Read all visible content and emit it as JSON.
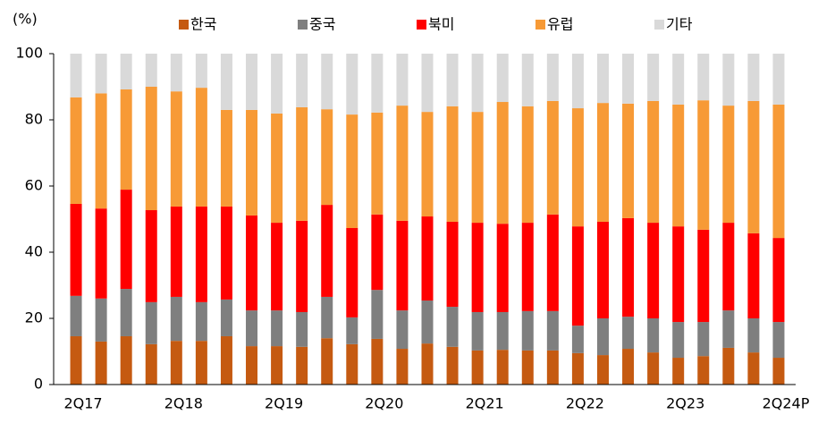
{
  "chart_data": {
    "type": "stacked_bar",
    "y_label": "(%)",
    "categories": [
      "2Q17",
      null,
      null,
      null,
      "2Q18",
      null,
      null,
      null,
      "2Q19",
      null,
      null,
      null,
      "2Q20",
      null,
      null,
      null,
      "2Q21",
      null,
      null,
      null,
      "2Q22",
      null,
      null,
      null,
      "2Q23",
      null,
      null,
      null,
      "2Q24P"
    ],
    "series": [
      {
        "name": "한국",
        "color": "#c55a11",
        "values": [
          14.6,
          13.0,
          14.6,
          12.2,
          13.2,
          13.2,
          14.6,
          11.6,
          11.6,
          11.4,
          14.0,
          12.2,
          13.8,
          10.8,
          12.4,
          11.4,
          10.3,
          10.5,
          10.3,
          10.3,
          9.5,
          8.9,
          10.8,
          9.7,
          8.1,
          8.6,
          11.1,
          9.7,
          8.1
        ]
      },
      {
        "name": "중국",
        "color": "#7f7f7f",
        "values": [
          12.2,
          13.0,
          14.3,
          12.7,
          13.3,
          11.7,
          11.1,
          10.8,
          10.8,
          10.5,
          12.5,
          8.1,
          14.8,
          11.6,
          13.0,
          12.1,
          11.6,
          11.4,
          11.9,
          11.9,
          8.3,
          11.1,
          9.7,
          10.3,
          10.8,
          10.3,
          11.3,
          10.3,
          10.8
        ]
      },
      {
        "name": "북미",
        "color": "#ff0000",
        "values": [
          27.8,
          27.2,
          30.0,
          27.8,
          27.3,
          28.9,
          28.1,
          28.7,
          26.5,
          27.6,
          27.8,
          27.0,
          22.8,
          27.1,
          25.4,
          25.7,
          27.0,
          26.7,
          26.7,
          29.2,
          30.0,
          29.2,
          29.8,
          28.9,
          28.9,
          27.9,
          26.5,
          25.7,
          25.4
        ]
      },
      {
        "name": "유럽",
        "color": "#f79a36",
        "values": [
          32.2,
          34.8,
          30.3,
          37.3,
          34.8,
          35.9,
          29.2,
          31.9,
          33.0,
          34.3,
          28.9,
          34.3,
          30.8,
          34.8,
          31.6,
          34.9,
          33.5,
          36.8,
          35.2,
          34.3,
          35.7,
          35.9,
          34.6,
          36.8,
          36.8,
          39.1,
          35.4,
          40.0,
          40.3
        ]
      },
      {
        "name": "기타",
        "color": "#d9d9d9",
        "values": [
          13.2,
          12.0,
          10.8,
          10.0,
          11.4,
          10.3,
          17.0,
          17.0,
          18.1,
          16.2,
          16.8,
          18.4,
          17.8,
          15.7,
          17.6,
          15.9,
          17.6,
          14.6,
          15.9,
          14.3,
          16.5,
          14.9,
          15.1,
          14.3,
          15.4,
          14.1,
          15.7,
          14.3,
          15.4
        ]
      }
    ],
    "ylim": [
      0,
      100
    ],
    "yticks": [
      0,
      20,
      40,
      60,
      80,
      100
    ],
    "grid": false,
    "legend": "top"
  }
}
